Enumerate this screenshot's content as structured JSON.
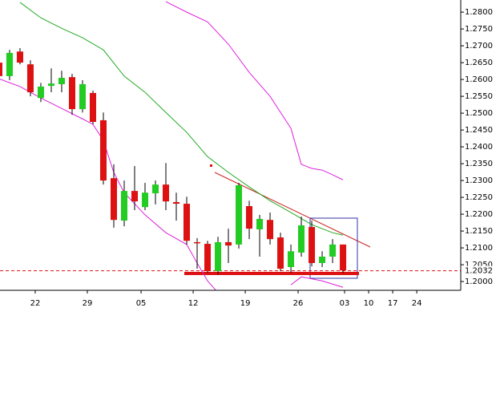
{
  "chart_data": {
    "type": "candlestick",
    "up_color": "#22cc22",
    "down_color": "#dd1111",
    "x": [
      -1,
      0,
      1,
      2,
      3,
      4,
      5,
      6,
      7,
      8,
      9,
      10,
      11,
      12,
      13,
      14,
      15,
      16,
      17,
      18,
      19,
      20,
      21,
      22,
      23,
      24,
      25,
      26,
      27,
      28,
      29,
      30,
      31,
      32
    ],
    "open": [
      1.265,
      1.261,
      1.2683,
      1.2645,
      1.2545,
      1.2581,
      1.2586,
      1.2607,
      1.2512,
      1.256,
      1.2479,
      1.2307,
      1.2181,
      1.2269,
      1.2221,
      1.2262,
      1.2288,
      1.2236,
      1.2231,
      1.2117,
      1.2112,
      1.2031,
      1.2117,
      1.211,
      1.2224,
      1.2155,
      1.2183,
      1.2131,
      1.2043,
      1.2086,
      1.2162,
      1.2055,
      1.2074,
      1.211
    ],
    "high": [
      1.266,
      1.2688,
      1.2693,
      1.2657,
      1.259,
      1.2633,
      1.2626,
      1.2617,
      1.2598,
      1.2567,
      1.2502,
      1.2348,
      1.23,
      1.2343,
      1.2293,
      1.23,
      1.2352,
      1.2264,
      1.2252,
      1.2129,
      1.2121,
      1.2133,
      1.2157,
      1.2293,
      1.224,
      1.2198,
      1.2205,
      1.2145,
      1.211,
      1.2193,
      1.2181,
      1.209,
      1.2126,
      1.211
    ],
    "low": [
      1.26,
      1.2598,
      1.2645,
      1.255,
      1.2533,
      1.2562,
      1.2562,
      1.2495,
      1.2502,
      1.2467,
      1.2288,
      1.216,
      1.2164,
      1.2212,
      1.2212,
      1.2229,
      1.2212,
      1.2181,
      1.211,
      1.2038,
      1.2026,
      1.2021,
      1.2055,
      1.2098,
      1.2126,
      1.2074,
      1.211,
      1.2031,
      1.2026,
      1.2074,
      1.2045,
      1.2043,
      1.2055,
      1.2026
    ],
    "close": [
      1.261,
      1.2679,
      1.265,
      1.2562,
      1.2579,
      1.2588,
      1.2605,
      1.2512,
      1.2586,
      1.2474,
      1.23,
      1.2183,
      1.2269,
      1.2238,
      1.2264,
      1.2288,
      1.2238,
      1.2231,
      1.2121,
      1.2115,
      1.2031,
      1.2117,
      1.2107,
      1.2286,
      1.2157,
      1.2186,
      1.2126,
      1.2038,
      1.209,
      1.2167,
      1.2055,
      1.2074,
      1.211,
      1.2033
    ],
    "lines": [
      {
        "color": "#22aa22",
        "x": [
          1,
          3,
          5,
          7,
          9,
          11,
          13,
          15,
          17,
          19,
          21,
          23,
          25,
          27,
          29,
          31,
          32
        ],
        "values": [
          1.2829,
          1.2783,
          1.2752,
          1.2724,
          1.2688,
          1.261,
          1.2562,
          1.2502,
          1.2443,
          1.2371,
          1.2324,
          1.2281,
          1.224,
          1.2205,
          1.2169,
          1.2145,
          1.2138
        ]
      },
      {
        "color": "#dd22dd",
        "x": [
          15,
          17,
          19,
          21,
          23,
          25,
          27,
          28,
          29,
          30,
          31,
          32
        ],
        "values": [
          1.2831,
          1.28,
          1.2771,
          1.2705,
          1.2621,
          1.255,
          1.2455,
          1.2348,
          1.2336,
          1.2331,
          1.2317,
          1.2302
        ]
      },
      {
        "color": "#dd22dd",
        "x": [
          -1,
          1,
          3,
          5,
          7,
          8,
          9,
          10,
          11,
          13,
          15,
          17,
          18,
          19,
          20,
          26,
          27,
          28,
          30,
          32
        ],
        "values": [
          1.2602,
          1.2579,
          1.2545,
          1.2514,
          1.2483,
          1.2467,
          1.2419,
          1.2324,
          1.2264,
          1.2198,
          1.2145,
          1.211,
          1.2055,
          1.2002,
          1.1967,
          null,
          1.199,
          1.2014,
          1.2002,
          1.1983
        ]
      }
    ],
    "last_price": 1.2032,
    "ylim": [
      1.1974,
      1.2836
    ],
    "yticks": [
      {
        "value": 1.2,
        "label": "1.2000"
      },
      {
        "value": 1.205,
        "label": "1.2050"
      },
      {
        "value": 1.21,
        "label": "1.2100"
      },
      {
        "value": 1.215,
        "label": "1.2150"
      },
      {
        "value": 1.22,
        "label": "1.2200"
      },
      {
        "value": 1.225,
        "label": "1.2250"
      },
      {
        "value": 1.23,
        "label": "1.2300"
      },
      {
        "value": 1.235,
        "label": "1.2350"
      },
      {
        "value": 1.24,
        "label": "1.2400"
      },
      {
        "value": 1.245,
        "label": "1.2450"
      },
      {
        "value": 1.25,
        "label": "1.2500"
      },
      {
        "value": 1.255,
        "label": "1.2550"
      },
      {
        "value": 1.26,
        "label": "1.2600"
      },
      {
        "value": 1.265,
        "label": "1.2650"
      },
      {
        "value": 1.27,
        "label": "1.2700"
      },
      {
        "value": 1.275,
        "label": "1.2750"
      },
      {
        "value": 1.28,
        "label": "1.2800"
      }
    ],
    "xlim": [
      -0.92,
      43.3
    ],
    "xticks": [
      {
        "value": 2.46,
        "label": "22"
      },
      {
        "value": 7.46,
        "label": "29"
      },
      {
        "value": 12.62,
        "label": "05"
      },
      {
        "value": 17.62,
        "label": "12"
      },
      {
        "value": 22.62,
        "label": "19"
      },
      {
        "value": 27.69,
        "label": "26"
      },
      {
        "value": 32.15,
        "label": "03"
      },
      {
        "value": 34.46,
        "label": "10"
      },
      {
        "value": 36.77,
        "label": "17"
      },
      {
        "value": 39.08,
        "label": "24"
      }
    ]
  }
}
